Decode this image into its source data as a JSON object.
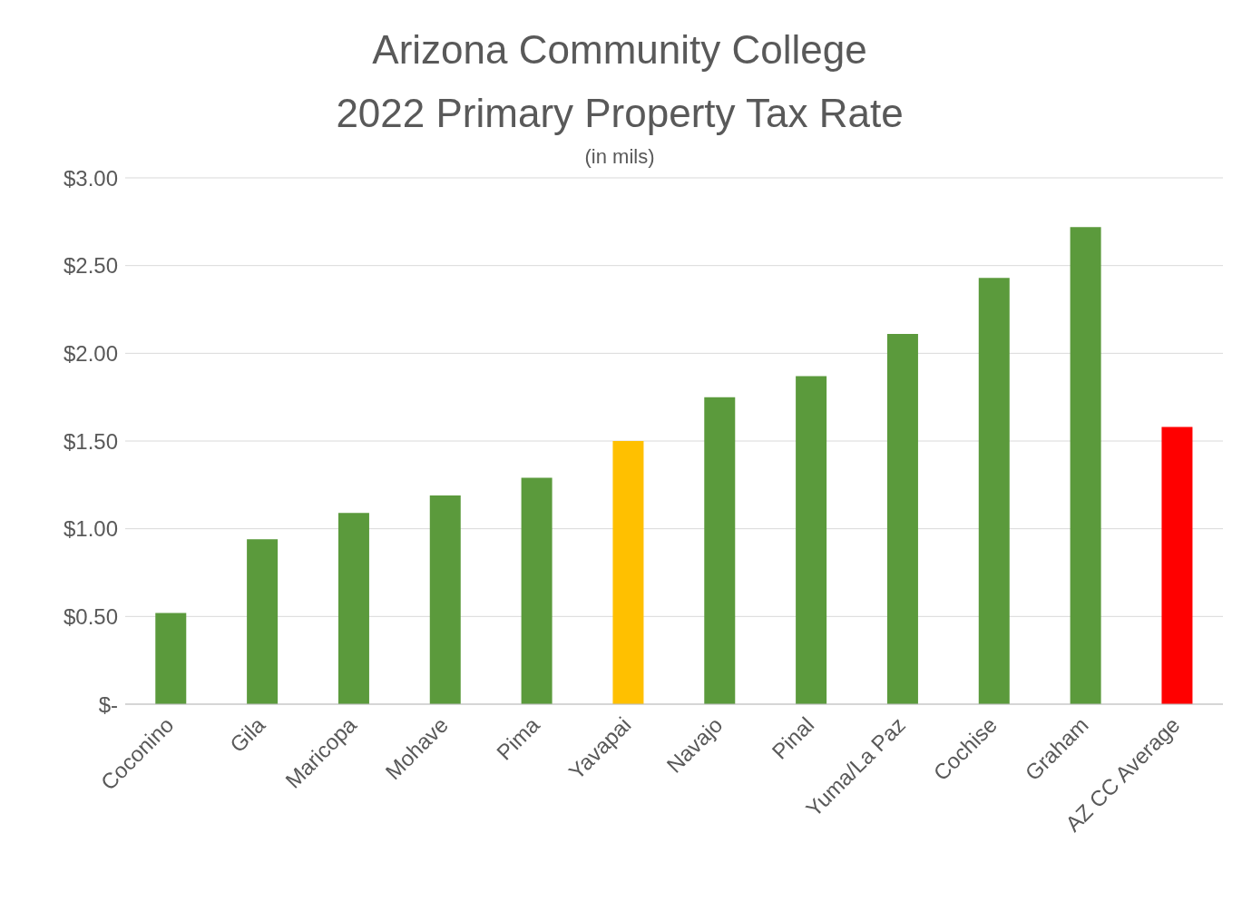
{
  "chart_data": {
    "type": "bar",
    "title": "Arizona Community College\n2022 Primary Property Tax Rate",
    "subtitle": "(in mils)",
    "categories": [
      "Coconino",
      "Gila",
      "Maricopa",
      "Mohave",
      "Pima",
      "Yavapai",
      "Navajo",
      "Pinal",
      "Yuma/La Paz",
      "Cochise",
      "Graham",
      "AZ CC Average"
    ],
    "values": [
      0.52,
      0.94,
      1.09,
      1.19,
      1.29,
      1.5,
      1.75,
      1.87,
      2.11,
      2.43,
      2.72,
      1.58
    ],
    "colors": [
      "#5b9a3c",
      "#5b9a3c",
      "#5b9a3c",
      "#5b9a3c",
      "#5b9a3c",
      "#ffc000",
      "#5b9a3c",
      "#5b9a3c",
      "#5b9a3c",
      "#5b9a3c",
      "#5b9a3c",
      "#ff0000"
    ],
    "ylim": [
      0,
      3
    ],
    "yticks": [
      {
        "value": 0,
        "label": "$-"
      },
      {
        "value": 0.5,
        "label": "$0.50"
      },
      {
        "value": 1,
        "label": "$1.00"
      },
      {
        "value": 1.5,
        "label": "$1.50"
      },
      {
        "value": 2,
        "label": "$2.00"
      },
      {
        "value": 2.5,
        "label": "$2.50"
      },
      {
        "value": 3,
        "label": "$3.00"
      }
    ],
    "grid": "y",
    "legend": false
  }
}
